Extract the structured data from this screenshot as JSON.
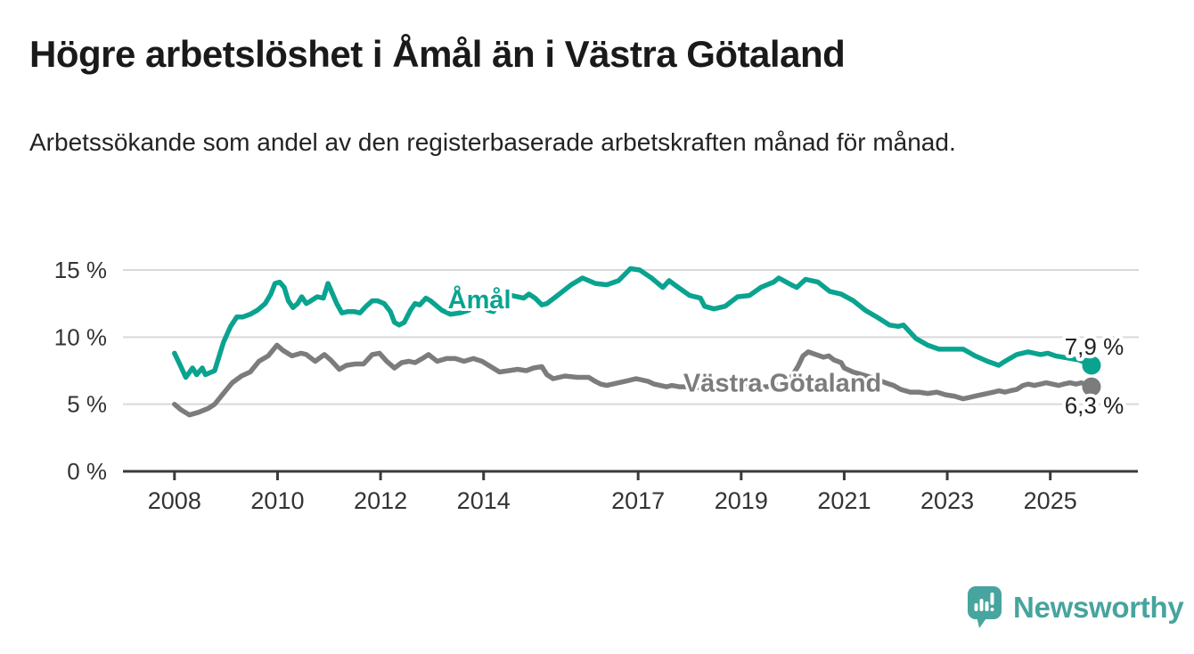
{
  "header": {
    "title": "Högre arbetslöshet i Åmål än i Västra Götaland",
    "subtitle": "Arbetssökande som andel av den registerbaserade arbetskraften månad för månad."
  },
  "branding": {
    "logo_text": "Newsworthy",
    "logo_icon": "speech-bubble-bar-chart"
  },
  "colors": {
    "series_teal": "#0aa390",
    "series_gray": "#7c7c7c",
    "logo_teal": "#47a49e",
    "grid": "#d9d9d9",
    "axis": "#3a3a3a",
    "tick_text": "#333333",
    "value_label_text": "#222222",
    "title_text": "#1a1a1a",
    "background": "#ffffff"
  },
  "chart_data": {
    "type": "line",
    "title": "Högre arbetslöshet i Åmål än i Västra Götaland",
    "subtitle": "Arbetssökande som andel av den registerbaserade arbetskraften månad för månad.",
    "xlabel": "",
    "ylabel": "",
    "xlim": [
      2007.0,
      2026.7
    ],
    "ylim": [
      0,
      15.9
    ],
    "grid": "horizontal",
    "legend_position": "inline-labels",
    "x_ticks": [
      {
        "v": 2008,
        "label": "2008"
      },
      {
        "v": 2010,
        "label": "2010"
      },
      {
        "v": 2012,
        "label": "2012"
      },
      {
        "v": 2014,
        "label": "2014"
      },
      {
        "v": 2017,
        "label": "2017"
      },
      {
        "v": 2019,
        "label": "2019"
      },
      {
        "v": 2021,
        "label": "2021"
      },
      {
        "v": 2023,
        "label": "2023"
      },
      {
        "v": 2025,
        "label": "2025"
      }
    ],
    "y_ticks": [
      {
        "v": 0,
        "label": "0 %"
      },
      {
        "v": 5,
        "label": "5 %"
      },
      {
        "v": 10,
        "label": "10 %"
      },
      {
        "v": 15,
        "label": "15 %"
      }
    ],
    "series": [
      {
        "name": "Åmål",
        "color": "#0aa390",
        "label": {
          "text": "Åmål",
          "x": 2013.92,
          "y": 12.8
        },
        "end_dot": true,
        "end_label": {
          "text": "7,9 %",
          "side": "above",
          "leader": true
        },
        "last_value": 7.9,
        "points": [
          [
            2008.0,
            8.8
          ],
          [
            2008.1,
            8.0
          ],
          [
            2008.22,
            7.0
          ],
          [
            2008.35,
            7.7
          ],
          [
            2008.43,
            7.2
          ],
          [
            2008.54,
            7.7
          ],
          [
            2008.6,
            7.2
          ],
          [
            2008.78,
            7.5
          ],
          [
            2008.95,
            9.6
          ],
          [
            2009.09,
            10.8
          ],
          [
            2009.21,
            11.5
          ],
          [
            2009.33,
            11.5
          ],
          [
            2009.47,
            11.7
          ],
          [
            2009.61,
            12.0
          ],
          [
            2009.76,
            12.5
          ],
          [
            2009.87,
            13.2
          ],
          [
            2009.95,
            14.0
          ],
          [
            2010.04,
            14.1
          ],
          [
            2010.13,
            13.7
          ],
          [
            2010.21,
            12.7
          ],
          [
            2010.3,
            12.2
          ],
          [
            2010.39,
            12.5
          ],
          [
            2010.47,
            13.0
          ],
          [
            2010.56,
            12.5
          ],
          [
            2010.65,
            12.7
          ],
          [
            2010.77,
            13.0
          ],
          [
            2010.89,
            12.9
          ],
          [
            2010.98,
            14.0
          ],
          [
            2011.06,
            13.3
          ],
          [
            2011.15,
            12.5
          ],
          [
            2011.25,
            11.8
          ],
          [
            2011.37,
            11.9
          ],
          [
            2011.49,
            11.9
          ],
          [
            2011.6,
            11.8
          ],
          [
            2011.72,
            12.3
          ],
          [
            2011.84,
            12.7
          ],
          [
            2011.94,
            12.7
          ],
          [
            2012.07,
            12.5
          ],
          [
            2012.19,
            11.9
          ],
          [
            2012.27,
            11.1
          ],
          [
            2012.36,
            10.9
          ],
          [
            2012.46,
            11.1
          ],
          [
            2012.58,
            12.0
          ],
          [
            2012.67,
            12.5
          ],
          [
            2012.76,
            12.4
          ],
          [
            2012.88,
            12.9
          ],
          [
            2012.97,
            12.7
          ],
          [
            2013.19,
            12.0
          ],
          [
            2013.36,
            11.7
          ],
          [
            2013.54,
            11.8
          ],
          [
            2013.71,
            12.0
          ],
          [
            2013.88,
            12.7
          ],
          [
            2013.97,
            12.3
          ],
          [
            2014.09,
            12.0
          ],
          [
            2014.19,
            11.9
          ],
          [
            2014.37,
            13.0
          ],
          [
            2014.54,
            13.1
          ],
          [
            2014.78,
            12.9
          ],
          [
            2014.88,
            13.2
          ],
          [
            2015.0,
            12.9
          ],
          [
            2015.13,
            12.4
          ],
          [
            2015.23,
            12.5
          ],
          [
            2015.47,
            13.2
          ],
          [
            2015.7,
            13.9
          ],
          [
            2015.92,
            14.4
          ],
          [
            2016.17,
            14.0
          ],
          [
            2016.39,
            13.9
          ],
          [
            2016.62,
            14.2
          ],
          [
            2016.85,
            15.1
          ],
          [
            2017.03,
            15.0
          ],
          [
            2017.26,
            14.4
          ],
          [
            2017.48,
            13.7
          ],
          [
            2017.6,
            14.2
          ],
          [
            2017.78,
            13.7
          ],
          [
            2018.0,
            13.1
          ],
          [
            2018.21,
            12.9
          ],
          [
            2018.29,
            12.3
          ],
          [
            2018.47,
            12.1
          ],
          [
            2018.69,
            12.3
          ],
          [
            2018.93,
            13.0
          ],
          [
            2019.16,
            13.1
          ],
          [
            2019.38,
            13.7
          ],
          [
            2019.63,
            14.1
          ],
          [
            2019.73,
            14.4
          ],
          [
            2019.97,
            13.9
          ],
          [
            2020.08,
            13.7
          ],
          [
            2020.25,
            14.3
          ],
          [
            2020.49,
            14.1
          ],
          [
            2020.72,
            13.4
          ],
          [
            2020.94,
            13.2
          ],
          [
            2021.18,
            12.7
          ],
          [
            2021.41,
            12.0
          ],
          [
            2021.63,
            11.5
          ],
          [
            2021.88,
            10.9
          ],
          [
            2022.05,
            10.8
          ],
          [
            2022.15,
            10.9
          ],
          [
            2022.39,
            9.9
          ],
          [
            2022.62,
            9.4
          ],
          [
            2022.84,
            9.1
          ],
          [
            2023.09,
            9.1
          ],
          [
            2023.31,
            9.1
          ],
          [
            2023.54,
            8.6
          ],
          [
            2023.78,
            8.2
          ],
          [
            2024.0,
            7.9
          ],
          [
            2024.12,
            8.2
          ],
          [
            2024.35,
            8.7
          ],
          [
            2024.57,
            8.9
          ],
          [
            2024.81,
            8.7
          ],
          [
            2024.95,
            8.8
          ],
          [
            2025.1,
            8.6
          ],
          [
            2025.25,
            8.5
          ],
          [
            2025.4,
            8.4
          ],
          [
            2025.55,
            8.3
          ],
          [
            2025.8,
            7.9
          ]
        ]
      },
      {
        "name": "Västra Götaland",
        "color": "#7c7c7c",
        "label": {
          "text": "Västra Götaland",
          "x": 2019.8,
          "y": 6.62
        },
        "end_dot": true,
        "end_label": {
          "text": "6,3 %",
          "side": "below",
          "leader": false
        },
        "last_value": 6.3,
        "points": [
          [
            2008.0,
            5.0
          ],
          [
            2008.12,
            4.6
          ],
          [
            2008.29,
            4.2
          ],
          [
            2008.47,
            4.4
          ],
          [
            2008.66,
            4.7
          ],
          [
            2008.78,
            5.0
          ],
          [
            2008.95,
            5.8
          ],
          [
            2009.12,
            6.6
          ],
          [
            2009.3,
            7.1
          ],
          [
            2009.47,
            7.4
          ],
          [
            2009.64,
            8.2
          ],
          [
            2009.82,
            8.6
          ],
          [
            2009.99,
            9.4
          ],
          [
            2010.11,
            9.0
          ],
          [
            2010.28,
            8.6
          ],
          [
            2010.46,
            8.8
          ],
          [
            2010.56,
            8.7
          ],
          [
            2010.73,
            8.2
          ],
          [
            2010.91,
            8.7
          ],
          [
            2011.03,
            8.3
          ],
          [
            2011.2,
            7.6
          ],
          [
            2011.34,
            7.9
          ],
          [
            2011.51,
            8.0
          ],
          [
            2011.67,
            8.0
          ],
          [
            2011.84,
            8.7
          ],
          [
            2011.98,
            8.8
          ],
          [
            2012.12,
            8.2
          ],
          [
            2012.27,
            7.7
          ],
          [
            2012.41,
            8.1
          ],
          [
            2012.55,
            8.2
          ],
          [
            2012.67,
            8.1
          ],
          [
            2012.81,
            8.4
          ],
          [
            2012.93,
            8.7
          ],
          [
            2013.1,
            8.2
          ],
          [
            2013.28,
            8.4
          ],
          [
            2013.45,
            8.4
          ],
          [
            2013.62,
            8.2
          ],
          [
            2013.8,
            8.4
          ],
          [
            2013.97,
            8.2
          ],
          [
            2014.14,
            7.8
          ],
          [
            2014.31,
            7.4
          ],
          [
            2014.49,
            7.5
          ],
          [
            2014.66,
            7.6
          ],
          [
            2014.83,
            7.5
          ],
          [
            2014.97,
            7.7
          ],
          [
            2015.13,
            7.8
          ],
          [
            2015.23,
            7.2
          ],
          [
            2015.35,
            6.9
          ],
          [
            2015.58,
            7.1
          ],
          [
            2015.82,
            7.0
          ],
          [
            2016.04,
            7.0
          ],
          [
            2016.17,
            6.7
          ],
          [
            2016.27,
            6.5
          ],
          [
            2016.39,
            6.4
          ],
          [
            2016.62,
            6.6
          ],
          [
            2016.74,
            6.7
          ],
          [
            2016.96,
            6.9
          ],
          [
            2017.08,
            6.8
          ],
          [
            2017.2,
            6.7
          ],
          [
            2017.31,
            6.5
          ],
          [
            2017.43,
            6.4
          ],
          [
            2017.55,
            6.3
          ],
          [
            2017.65,
            6.4
          ],
          [
            2017.8,
            6.3
          ],
          [
            2018.0,
            6.3
          ],
          [
            2018.3,
            6.2
          ],
          [
            2018.6,
            6.2
          ],
          [
            2018.9,
            6.3
          ],
          [
            2019.2,
            6.3
          ],
          [
            2019.5,
            6.3
          ],
          [
            2019.8,
            6.5
          ],
          [
            2019.97,
            7.0
          ],
          [
            2020.1,
            7.8
          ],
          [
            2020.2,
            8.6
          ],
          [
            2020.3,
            8.9
          ],
          [
            2020.45,
            8.7
          ],
          [
            2020.6,
            8.5
          ],
          [
            2020.7,
            8.6
          ],
          [
            2020.8,
            8.3
          ],
          [
            2020.94,
            8.1
          ],
          [
            2021.0,
            7.7
          ],
          [
            2021.17,
            7.4
          ],
          [
            2021.35,
            7.2
          ],
          [
            2021.6,
            6.9
          ],
          [
            2021.8,
            6.6
          ],
          [
            2021.96,
            6.4
          ],
          [
            2022.1,
            6.1
          ],
          [
            2022.28,
            5.9
          ],
          [
            2022.45,
            5.9
          ],
          [
            2022.62,
            5.8
          ],
          [
            2022.8,
            5.9
          ],
          [
            2022.97,
            5.7
          ],
          [
            2023.14,
            5.6
          ],
          [
            2023.31,
            5.4
          ],
          [
            2023.43,
            5.5
          ],
          [
            2023.54,
            5.6
          ],
          [
            2023.66,
            5.7
          ],
          [
            2023.78,
            5.8
          ],
          [
            2023.9,
            5.9
          ],
          [
            2024.0,
            6.0
          ],
          [
            2024.12,
            5.9
          ],
          [
            2024.22,
            6.0
          ],
          [
            2024.35,
            6.1
          ],
          [
            2024.47,
            6.4
          ],
          [
            2024.57,
            6.5
          ],
          [
            2024.69,
            6.4
          ],
          [
            2024.81,
            6.5
          ],
          [
            2024.92,
            6.6
          ],
          [
            2025.04,
            6.5
          ],
          [
            2025.16,
            6.4
          ],
          [
            2025.26,
            6.5
          ],
          [
            2025.38,
            6.6
          ],
          [
            2025.5,
            6.5
          ],
          [
            2025.6,
            6.6
          ],
          [
            2025.8,
            6.3
          ]
        ]
      }
    ]
  }
}
